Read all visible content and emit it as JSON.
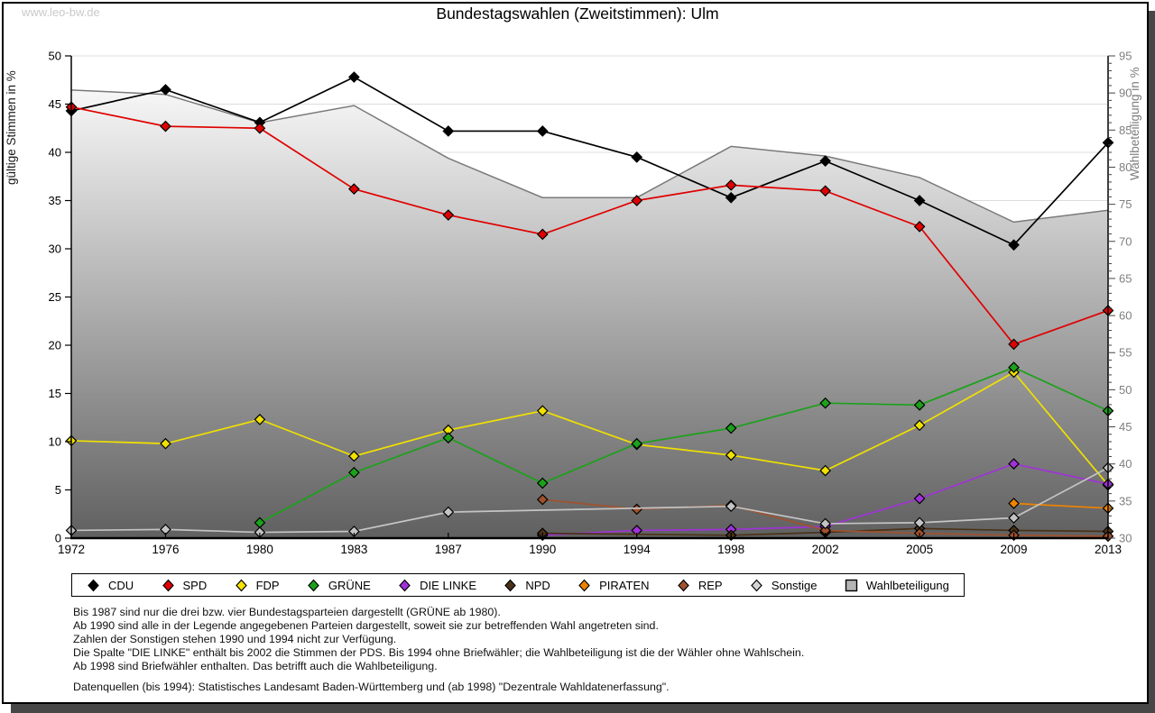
{
  "watermark": "www.leo-bw.de",
  "title": "Bundestagswahlen (Zweitstimmen): Ulm",
  "chart_data": {
    "type": "line",
    "x": [
      "1972",
      "1976",
      "1980",
      "1983",
      "1987",
      "1990",
      "1994",
      "1998",
      "2002",
      "2005",
      "2009",
      "2013"
    ],
    "left_axis": {
      "label": "gültige Stimmen in %",
      "min": 0,
      "max": 50,
      "tick_step": 5
    },
    "right_axis": {
      "label": "Wahlbeteiligung in %",
      "min": 30,
      "max": 95,
      "tick_step": 5,
      "minor_tick_step": 1
    },
    "grid": true,
    "legend_position": "bottom",
    "series": [
      {
        "name": "CDU",
        "color": "#000000",
        "axis": "left",
        "kind": "line",
        "values": [
          44.3,
          46.5,
          43.1,
          47.8,
          42.2,
          42.2,
          39.5,
          35.3,
          39.1,
          35.0,
          30.4,
          41.0
        ]
      },
      {
        "name": "SPD",
        "color": "#e00000",
        "axis": "left",
        "kind": "line",
        "values": [
          44.7,
          42.7,
          42.5,
          36.2,
          33.5,
          31.5,
          35.0,
          36.6,
          36.0,
          32.3,
          20.1,
          23.6
        ]
      },
      {
        "name": "FDP",
        "color": "#f0e100",
        "axis": "left",
        "kind": "line",
        "values": [
          10.1,
          9.8,
          12.3,
          8.5,
          11.2,
          13.2,
          9.7,
          8.6,
          7.0,
          11.7,
          17.2,
          5.5
        ]
      },
      {
        "name": "GRÜNE",
        "color": "#1ba11b",
        "axis": "left",
        "kind": "line",
        "values": [
          null,
          null,
          1.6,
          6.8,
          10.4,
          5.7,
          9.8,
          11.4,
          14.0,
          13.8,
          17.7,
          13.2
        ]
      },
      {
        "name": "DIE LINKE",
        "color": "#a032d8",
        "axis": "left",
        "kind": "line",
        "values": [
          null,
          null,
          null,
          null,
          null,
          0.3,
          0.8,
          0.9,
          1.2,
          4.1,
          7.7,
          5.6
        ]
      },
      {
        "name": "NPD",
        "color": "#4a3218",
        "axis": "left",
        "kind": "line",
        "values": [
          null,
          null,
          null,
          null,
          null,
          0.5,
          null,
          0.3,
          0.6,
          1.0,
          0.8,
          0.7
        ]
      },
      {
        "name": "PIRATEN",
        "color": "#ee8400",
        "axis": "left",
        "kind": "line",
        "values": [
          null,
          null,
          null,
          null,
          null,
          null,
          null,
          null,
          null,
          null,
          3.6,
          3.1
        ]
      },
      {
        "name": "REP",
        "color": "#a0522d",
        "axis": "left",
        "kind": "line",
        "values": [
          null,
          null,
          null,
          null,
          null,
          4.0,
          3.0,
          3.4,
          0.8,
          0.5,
          0.3,
          0.2
        ]
      },
      {
        "name": "Sonstige",
        "color": "#c4c4c4",
        "axis": "left",
        "kind": "line",
        "values": [
          0.8,
          0.9,
          0.6,
          0.7,
          2.7,
          null,
          null,
          3.3,
          1.5,
          1.6,
          2.1,
          7.3
        ]
      },
      {
        "name": "Wahlbeteiligung",
        "color": "#7a7a7a",
        "axis": "right",
        "kind": "area",
        "fill_top": "#fafafa",
        "fill_bottom": "#5f5f5f",
        "values": [
          90.4,
          89.8,
          86.0,
          88.3,
          81.2,
          75.9,
          75.9,
          82.8,
          81.5,
          78.6,
          72.6,
          74.2
        ]
      }
    ]
  },
  "legend": {
    "items": [
      {
        "label": "CDU",
        "color": "#000000",
        "marker": "diamond"
      },
      {
        "label": "SPD",
        "color": "#e00000",
        "marker": "diamond"
      },
      {
        "label": "FDP",
        "color": "#f5e400",
        "marker": "diamond"
      },
      {
        "label": "GRÜNE",
        "color": "#1ba11b",
        "marker": "diamond"
      },
      {
        "label": "DIE LINKE",
        "color": "#a032d8",
        "marker": "diamond"
      },
      {
        "label": "NPD",
        "color": "#4a3218",
        "marker": "diamond"
      },
      {
        "label": "PIRATEN",
        "color": "#ee8400",
        "marker": "diamond"
      },
      {
        "label": "REP",
        "color": "#a0522d",
        "marker": "diamond"
      },
      {
        "label": "Sonstige",
        "color": "#d4d4d4",
        "marker": "diamond"
      },
      {
        "label": "Wahlbeteiligung",
        "color": "#b4b4b4",
        "marker": "square"
      }
    ]
  },
  "footnotes": [
    "Bis 1987 sind nur die drei bzw. vier Bundestagsparteien dargestellt (GRÜNE ab 1980).",
    "Ab 1990 sind alle in der Legende angegebenen Parteien dargestellt, soweit sie zur betreffenden Wahl angetreten sind.",
    "Zahlen der Sonstigen stehen 1990 und 1994 nicht zur Verfügung.",
    "Die Spalte \"DIE LINKE\" enthält bis 2002 die Stimmen der PDS. Bis 1994 ohne Briefwähler; die Wahlbeteiligung ist die der Wähler ohne Wahlschein.",
    "Ab 1998 sind Briefwähler enthalten. Das betrifft auch die Wahlbeteiligung."
  ],
  "source_line": "Datenquellen (bis 1994): Statistisches Landesamt Baden-Württemberg und (ab 1998) \"Dezentrale Wahldatenerfassung\"."
}
